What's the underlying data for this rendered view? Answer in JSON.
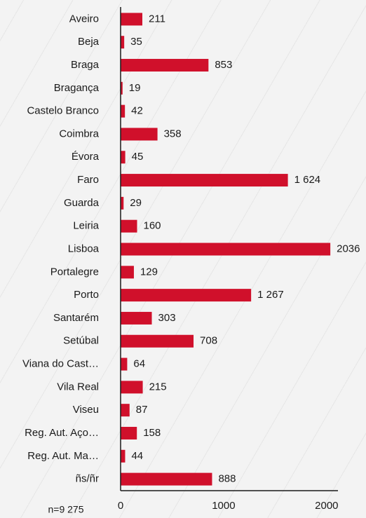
{
  "chart_data": {
    "type": "bar",
    "orientation": "horizontal",
    "categories": [
      "Aveiro",
      "Beja",
      "Braga",
      "Bragança",
      "Castelo Branco",
      "Coimbra",
      "Évora",
      "Faro",
      "Guarda",
      "Leiria",
      "Lisboa",
      "Portalegre",
      "Porto",
      "Santarém",
      "Setúbal",
      "Viana do Cast…",
      "Vila Real",
      "Viseu",
      "Reg. Aut. Aço…",
      "Reg. Aut. Ma…",
      "ñs/ñr"
    ],
    "values": [
      211,
      35,
      853,
      19,
      42,
      358,
      45,
      1624,
      29,
      160,
      2036,
      129,
      1267,
      303,
      708,
      64,
      215,
      87,
      158,
      44,
      888
    ],
    "value_labels": [
      "211",
      "35",
      "853",
      "19",
      "42",
      "358",
      "45",
      "1 624",
      "29",
      "160",
      "2036",
      "129",
      "1 267",
      "303",
      "708",
      "64",
      "215",
      "87",
      "158",
      "44",
      "888"
    ],
    "color": "#d0102b",
    "xlim": [
      0,
      2110
    ],
    "xticks": [
      0,
      1000,
      2000
    ],
    "annotation": "n=9 275"
  }
}
